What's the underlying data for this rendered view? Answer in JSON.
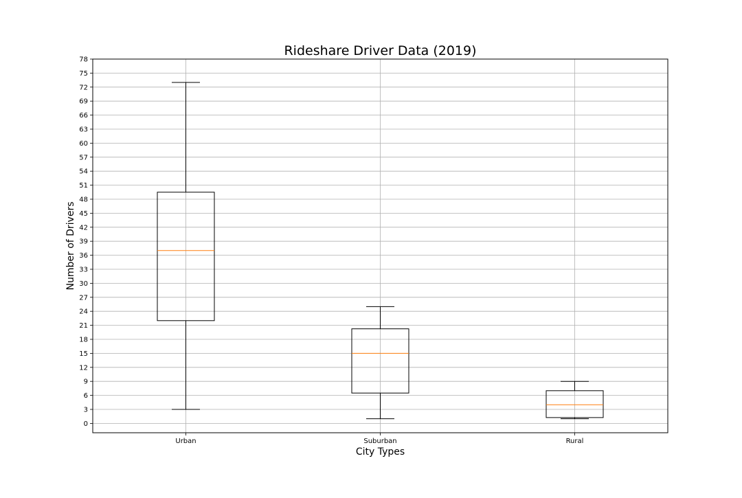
{
  "chart_data": {
    "type": "box",
    "title": "Rideshare Driver Data (2019)",
    "xlabel": "City Types",
    "ylabel": "Number of Drivers",
    "categories": [
      "Urban",
      "Suburban",
      "Rural"
    ],
    "ylim": [
      -2,
      78
    ],
    "yticks": [
      0,
      3,
      6,
      9,
      12,
      15,
      18,
      21,
      24,
      27,
      30,
      33,
      36,
      39,
      42,
      45,
      48,
      51,
      54,
      57,
      60,
      63,
      66,
      69,
      72,
      75,
      78
    ],
    "grid": true,
    "boxes": [
      {
        "category": "Urban",
        "whisker_low": 3,
        "q1": 22,
        "median": 37,
        "q3": 49.5,
        "whisker_high": 73
      },
      {
        "category": "Suburban",
        "whisker_low": 1,
        "q1": 6.5,
        "median": 15,
        "q3": 20.25,
        "whisker_high": 25
      },
      {
        "category": "Rural",
        "whisker_low": 1,
        "q1": 1.25,
        "median": 4,
        "q3": 7,
        "whisker_high": 9
      }
    ],
    "colors": {
      "box": "#000000",
      "median": "#ff7f0e",
      "grid": "#b0b0b0"
    }
  }
}
